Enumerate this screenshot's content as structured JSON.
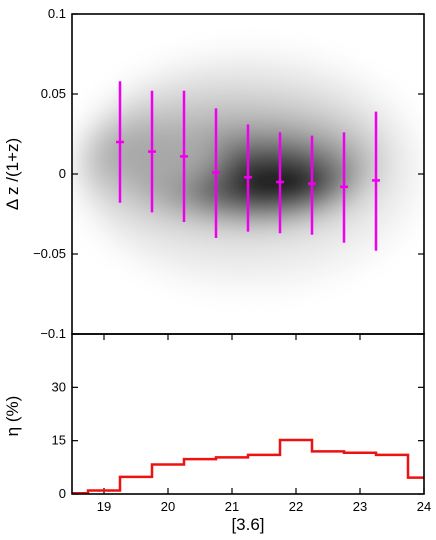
{
  "chart_data": [
    {
      "type": "scatter",
      "panel": "top",
      "title": "",
      "xlabel": "",
      "ylabel": "Δ z /(1+z)",
      "xlim": [
        18.5,
        24.0
      ],
      "ylim": [
        -0.1,
        0.1
      ],
      "yticks": [
        -0.1,
        -0.05,
        0,
        0.05,
        0.1
      ],
      "ytick_labels": [
        "−0.1",
        "−0.05",
        "0",
        "0.05",
        "0.1"
      ],
      "background": "grayscale density map, darkest near x≈22, y≈-0.005",
      "marker_color": "#ee00ee",
      "points": [
        {
          "x": 19.25,
          "y": 0.02,
          "err_low": -0.038,
          "err_high": 0.038
        },
        {
          "x": 19.75,
          "y": 0.014,
          "err_low": -0.038,
          "err_high": 0.038
        },
        {
          "x": 20.25,
          "y": 0.011,
          "err_low": -0.041,
          "err_high": 0.041
        },
        {
          "x": 20.75,
          "y": 0.001,
          "err_low": -0.041,
          "err_high": 0.04
        },
        {
          "x": 21.25,
          "y": -0.002,
          "err_low": -0.034,
          "err_high": 0.033
        },
        {
          "x": 21.75,
          "y": -0.005,
          "err_low": -0.032,
          "err_high": 0.031
        },
        {
          "x": 22.25,
          "y": -0.006,
          "err_low": -0.032,
          "err_high": 0.03
        },
        {
          "x": 22.75,
          "y": -0.008,
          "err_low": -0.035,
          "err_high": 0.034
        },
        {
          "x": 23.25,
          "y": -0.004,
          "err_low": -0.044,
          "err_high": 0.043
        }
      ]
    },
    {
      "type": "line",
      "panel": "bottom",
      "step": true,
      "title": "",
      "xlabel": "[3.6]",
      "ylabel": "η (%)",
      "xlim": [
        18.5,
        24.0
      ],
      "ylim": [
        0,
        45
      ],
      "xticks": [
        19,
        20,
        21,
        22,
        23,
        24
      ],
      "xtick_labels": [
        "19",
        "20",
        "21",
        "22",
        "23",
        "24"
      ],
      "yticks": [
        0,
        15,
        30
      ],
      "ytick_labels": [
        "0",
        "15",
        "30"
      ],
      "line_color": "#ee1111",
      "bins": [
        {
          "x0": 18.5,
          "x1": 18.75,
          "y": 0.2
        },
        {
          "x0": 18.75,
          "x1": 19.25,
          "y": 1.0
        },
        {
          "x0": 19.25,
          "x1": 19.75,
          "y": 4.8
        },
        {
          "x0": 19.75,
          "x1": 20.25,
          "y": 8.3
        },
        {
          "x0": 20.25,
          "x1": 20.75,
          "y": 9.8
        },
        {
          "x0": 20.75,
          "x1": 21.25,
          "y": 10.3
        },
        {
          "x0": 21.25,
          "x1": 21.75,
          "y": 11.0
        },
        {
          "x0": 21.75,
          "x1": 22.25,
          "y": 15.2
        },
        {
          "x0": 22.25,
          "x1": 22.75,
          "y": 12.0
        },
        {
          "x0": 22.75,
          "x1": 23.25,
          "y": 11.6
        },
        {
          "x0": 23.25,
          "x1": 23.75,
          "y": 11.0
        },
        {
          "x0": 23.75,
          "x1": 24.0,
          "y": 4.6
        }
      ]
    }
  ]
}
